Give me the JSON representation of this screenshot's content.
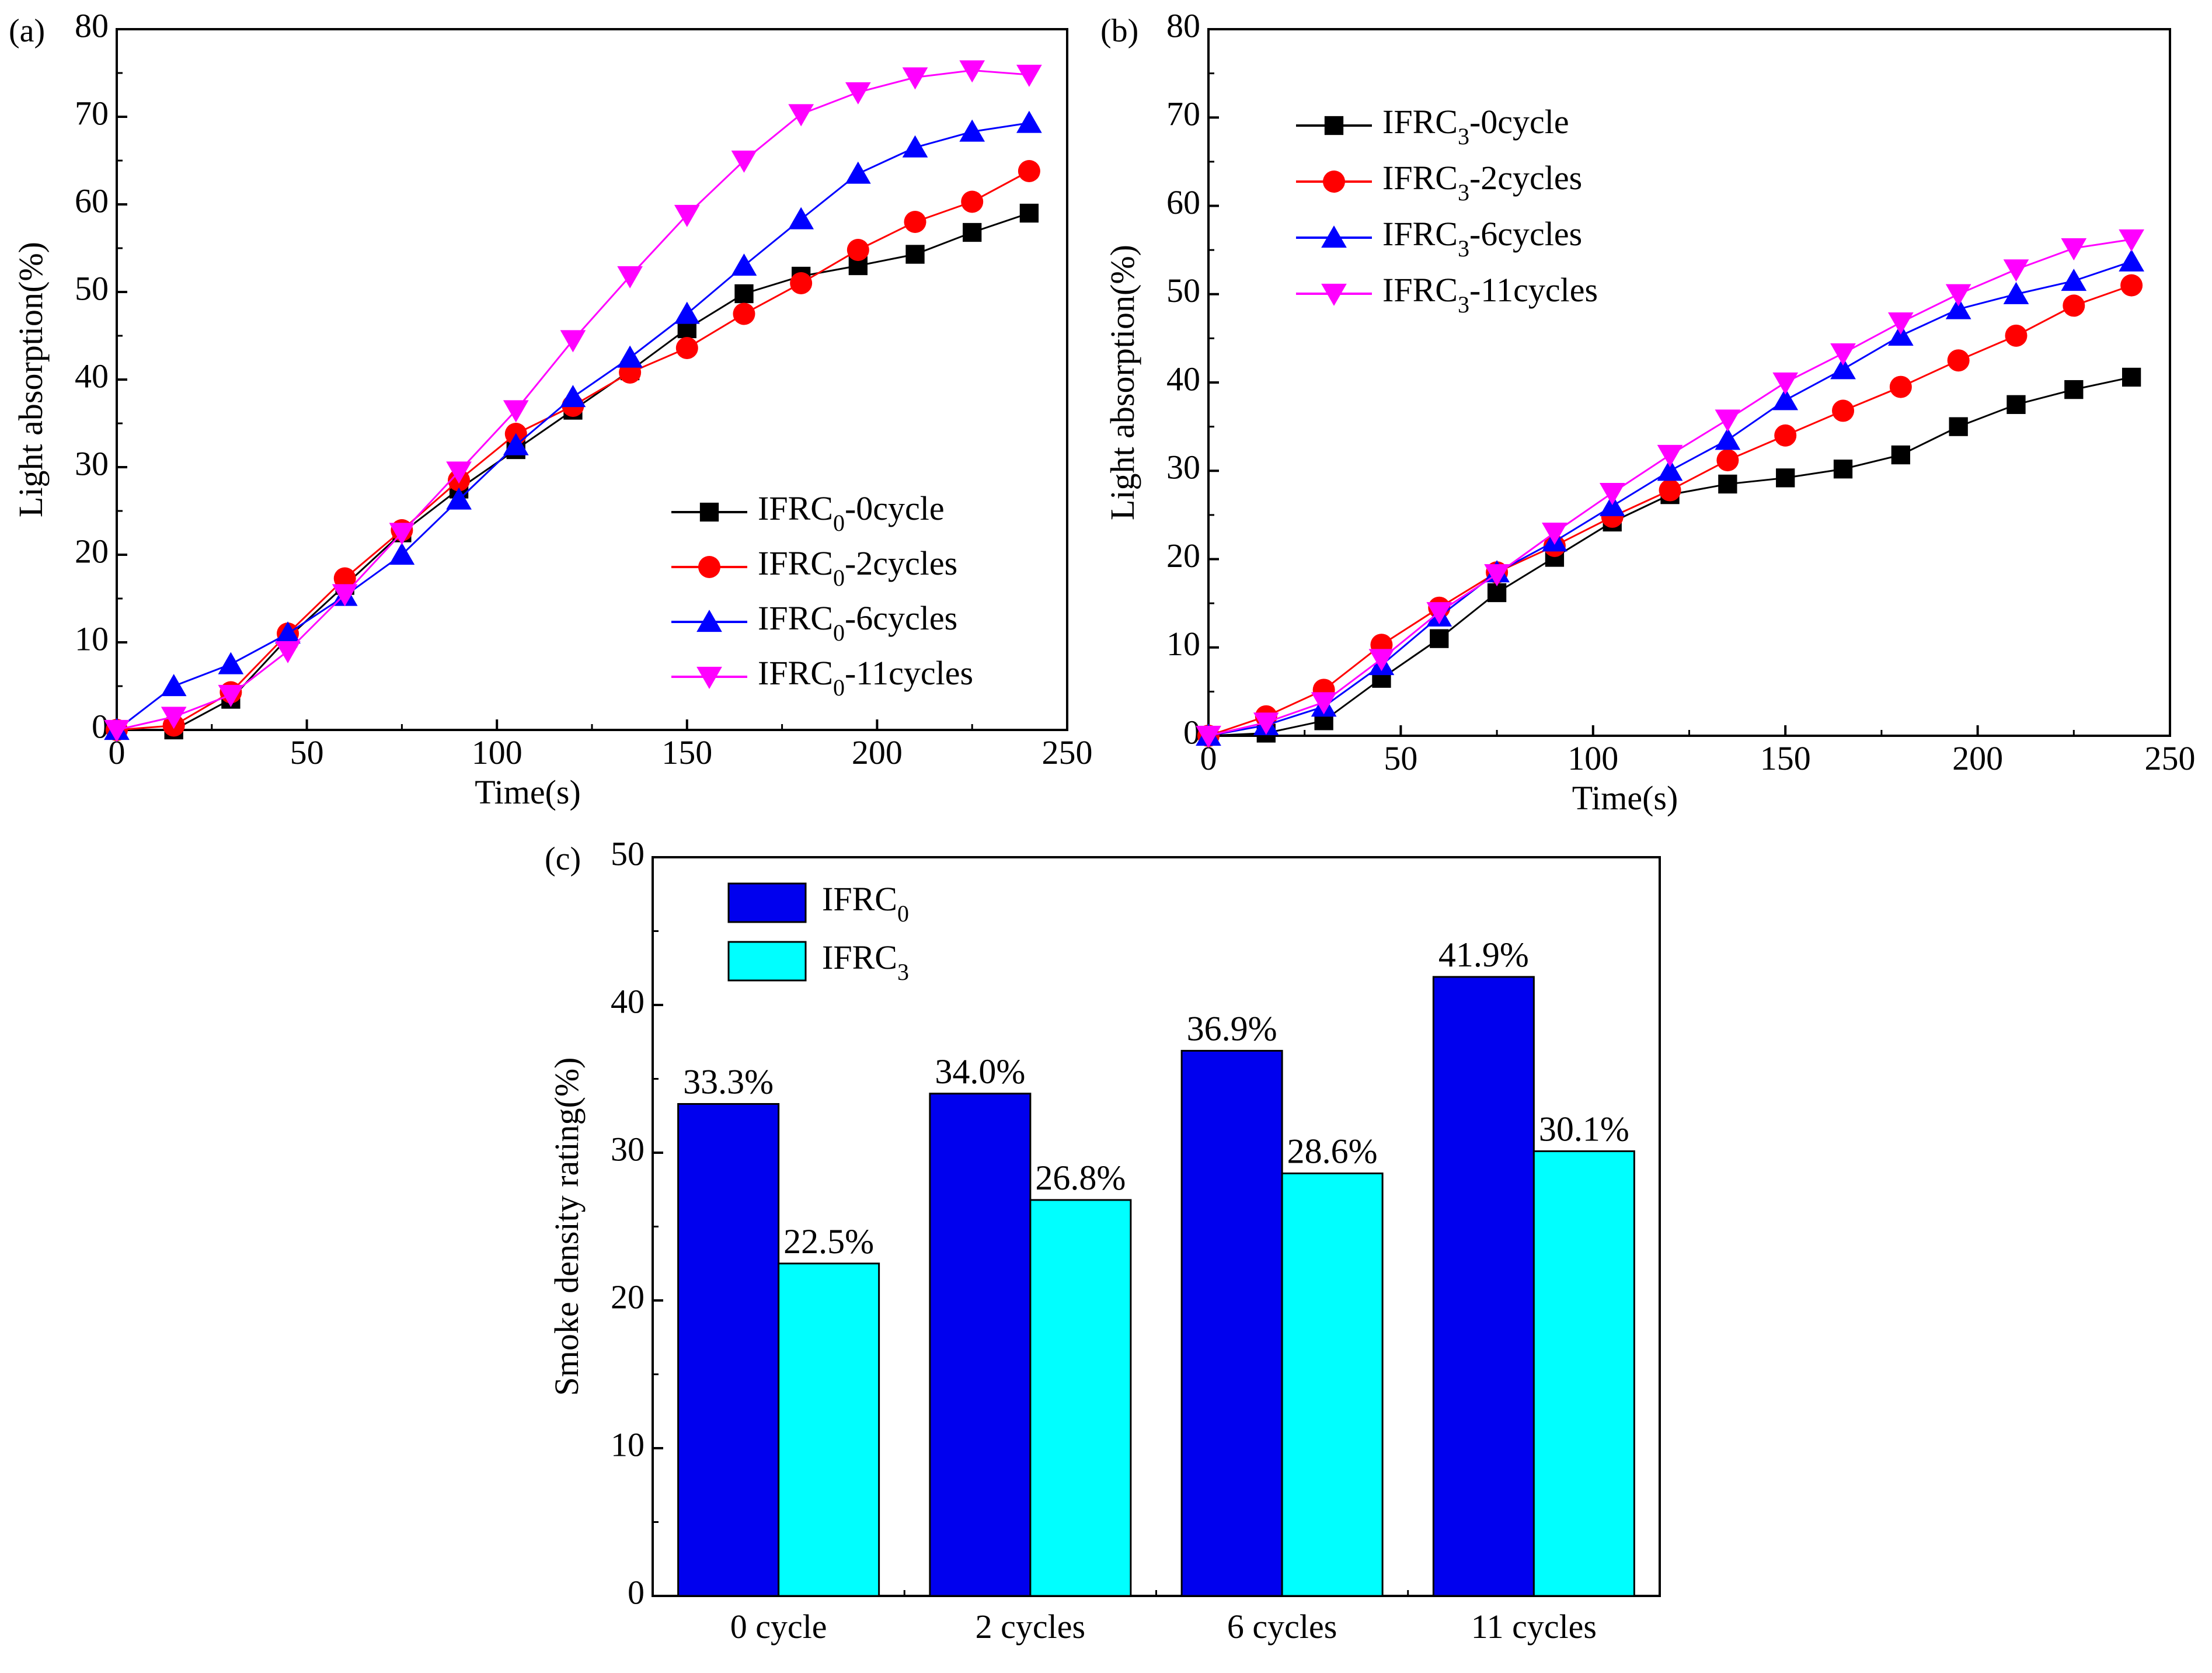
{
  "chart_data": [
    {
      "type": "line",
      "panel_label": "(a)",
      "title": "",
      "xlabel": "Time(s)",
      "ylabel": "Light absorption(%)",
      "xlim": [
        0,
        250
      ],
      "ylim": [
        0,
        80
      ],
      "xticks": [
        "0",
        "50",
        "100",
        "150",
        "200",
        "250"
      ],
      "yticks": [
        "0",
        "10",
        "20",
        "30",
        "40",
        "50",
        "60",
        "70",
        "80"
      ],
      "grid": false,
      "legend_position": "bottom-right",
      "x": [
        0,
        15,
        30,
        45,
        60,
        75,
        90,
        105,
        120,
        135,
        150,
        165,
        180,
        195,
        210,
        225,
        240
      ],
      "series": [
        {
          "name": "IFRC",
          "sub": "0",
          "suffix": "-0cycle",
          "color": "#000000",
          "marker": "square",
          "values": [
            0,
            0,
            3.5,
            10.5,
            16.5,
            22.5,
            27.5,
            32,
            36.5,
            41,
            45.8,
            49.8,
            51.8,
            53,
            54.3,
            56.8,
            59
          ]
        },
        {
          "name": "IFRC",
          "sub": "0",
          "suffix": "-2cycles",
          "color": "#ff0000",
          "marker": "circle",
          "values": [
            0,
            0.5,
            4.3,
            11,
            17.3,
            22.8,
            28.5,
            33.8,
            37,
            40.8,
            43.6,
            47.5,
            51,
            54.8,
            58,
            60.3,
            63.8
          ]
        },
        {
          "name": "IFRC",
          "sub": "0",
          "suffix": "-6cycles",
          "color": "#0000ff",
          "marker": "triangle-up",
          "values": [
            0,
            5,
            7.5,
            11,
            15.3,
            20,
            26.3,
            32.5,
            38,
            42.5,
            47.5,
            53,
            58.3,
            63.5,
            66.5,
            68.3,
            69.3
          ]
        },
        {
          "name": "IFRC",
          "sub": "0",
          "suffix": "-11cycles",
          "color": "#ff00ff",
          "marker": "triangle-down",
          "values": [
            0,
            1.5,
            4,
            9,
            15.5,
            22.5,
            29.5,
            36.5,
            44.5,
            51.8,
            58.8,
            65,
            70.3,
            72.8,
            74.5,
            75.3,
            74.8
          ]
        }
      ]
    },
    {
      "type": "line",
      "panel_label": "(b)",
      "title": "",
      "xlabel": "Time(s)",
      "ylabel": "Light absorption(%)",
      "xlim": [
        0,
        250
      ],
      "ylim": [
        0,
        80
      ],
      "xticks": [
        "0",
        "50",
        "100",
        "150",
        "200",
        "250"
      ],
      "yticks": [
        "0",
        "10",
        "20",
        "30",
        "40",
        "50",
        "60",
        "70",
        "80"
      ],
      "grid": false,
      "legend_position": "top-left",
      "x": [
        0,
        15,
        30,
        45,
        60,
        75,
        90,
        105,
        120,
        135,
        150,
        165,
        180,
        195,
        210,
        225,
        240
      ],
      "series": [
        {
          "name": "IFRC",
          "sub": "3",
          "suffix": "-0cycle",
          "color": "#000000",
          "marker": "square",
          "values": [
            0,
            0.3,
            1.7,
            6.5,
            11,
            16.2,
            20.2,
            24.2,
            27.3,
            28.5,
            29.2,
            30.2,
            31.8,
            35,
            37.5,
            39.2,
            40.6
          ]
        },
        {
          "name": "IFRC",
          "sub": "3",
          "suffix": "-2cycles",
          "color": "#ff0000",
          "marker": "circle",
          "values": [
            0,
            2.2,
            5.2,
            10.3,
            14.5,
            18.5,
            21.5,
            24.8,
            27.8,
            31.2,
            34,
            36.8,
            39.5,
            42.5,
            45.3,
            48.7,
            51
          ]
        },
        {
          "name": "IFRC",
          "sub": "3",
          "suffix": "-6cycles",
          "color": "#0000ff",
          "marker": "triangle-up",
          "values": [
            0,
            1.2,
            3.3,
            8,
            13.5,
            18.5,
            22,
            26,
            30,
            33.5,
            38,
            41.5,
            45.3,
            48.3,
            50,
            51.5,
            53.7
          ]
        },
        {
          "name": "IFRC",
          "sub": "3",
          "suffix": "-11cycles",
          "color": "#ff00ff",
          "marker": "triangle-down",
          "values": [
            0,
            1.5,
            3.8,
            8.7,
            14,
            18.3,
            23,
            27.5,
            31.8,
            35.8,
            40,
            43.3,
            46.8,
            50,
            52.8,
            55.2,
            56.2
          ]
        }
      ]
    },
    {
      "type": "bar",
      "panel_label": "(c)",
      "title": "",
      "xlabel": "",
      "ylabel": "Smoke density rating(%)",
      "ylim": [
        0,
        50
      ],
      "yticks": [
        "0",
        "10",
        "20",
        "30",
        "40",
        "50"
      ],
      "grid": false,
      "legend_position": "top-left",
      "categories": [
        "0 cycle",
        "2 cycles",
        "6 cycles",
        "11 cycles"
      ],
      "series": [
        {
          "name": "IFRC",
          "sub": "0",
          "color": "#0000ee",
          "values": [
            33.3,
            34.0,
            36.9,
            41.9
          ],
          "labels": [
            "33.3%",
            "34.0%",
            "36.9%",
            "41.9%"
          ]
        },
        {
          "name": "IFRC",
          "sub": "3",
          "color": "#00ffff",
          "values": [
            22.5,
            26.8,
            28.6,
            30.1
          ],
          "labels": [
            "22.5%",
            "26.8%",
            "28.6%",
            "30.1%"
          ]
        }
      ]
    }
  ]
}
